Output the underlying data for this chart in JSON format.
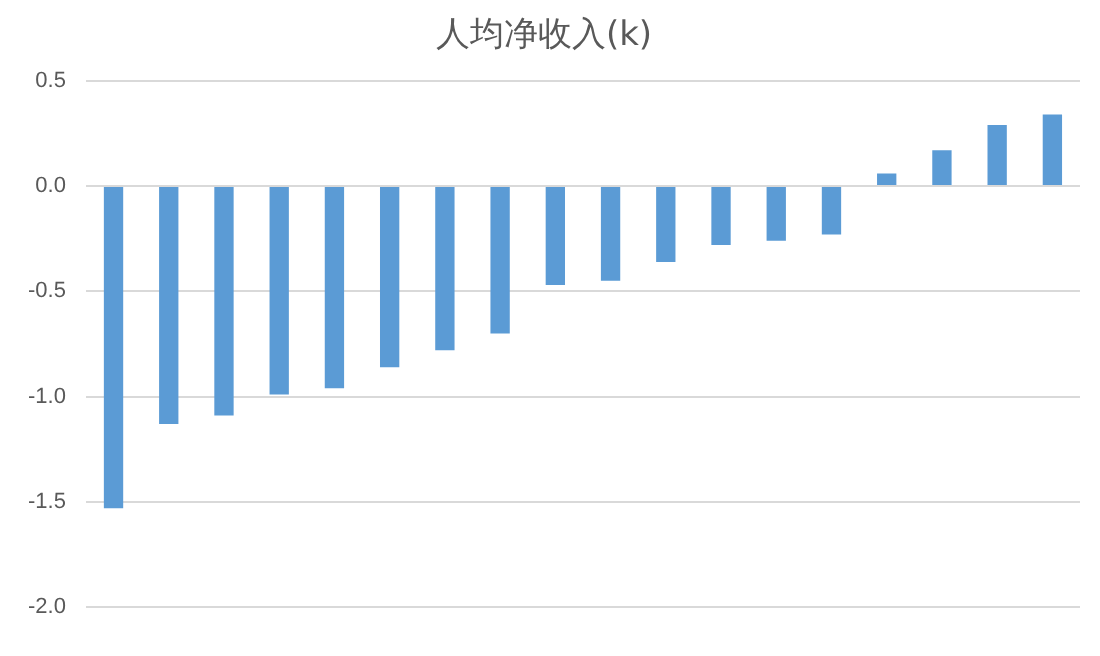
{
  "chart_data": {
    "type": "bar",
    "title": "人均净收入(k)",
    "categories": [
      null,
      null,
      null,
      null,
      null,
      null,
      null,
      null,
      null,
      null,
      null,
      null,
      null,
      null,
      null,
      null,
      null,
      null
    ],
    "values": [
      -1.53,
      -1.13,
      -1.09,
      -0.99,
      -0.96,
      -0.86,
      -0.78,
      -0.7,
      -0.47,
      -0.45,
      -0.36,
      -0.28,
      -0.26,
      -0.23,
      0.06,
      0.17,
      0.29,
      0.34
    ],
    "color": "#5b9bd5",
    "ylim": [
      -2,
      0.5
    ],
    "yticks": [
      {
        "value": -2,
        "label": "-2.0"
      },
      {
        "value": -1.5,
        "label": "-1.5"
      },
      {
        "value": -1,
        "label": "-1.0"
      },
      {
        "value": -0.5,
        "label": "-0.5"
      },
      {
        "value": 0,
        "label": "0.0"
      },
      0.5
    ],
    "grid": "y"
  }
}
